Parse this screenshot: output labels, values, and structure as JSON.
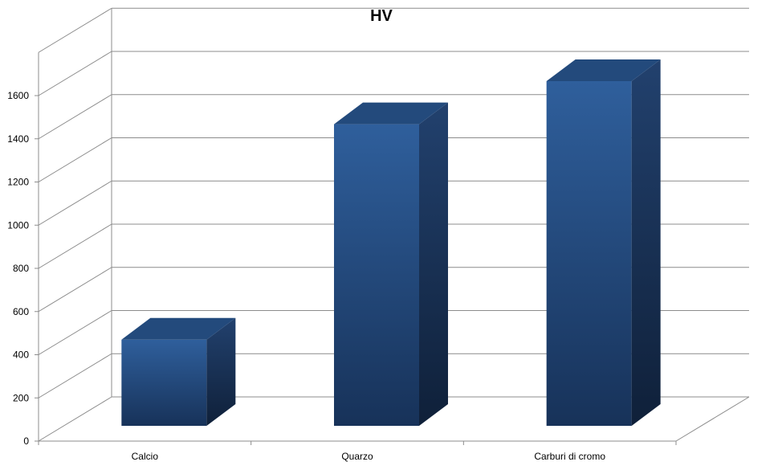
{
  "chart_data": {
    "type": "bar",
    "title": "HV",
    "categories": [
      "Calcio",
      "Quarzo",
      "Carburi di cromo"
    ],
    "values": [
      400,
      1400,
      1600
    ],
    "y_ticks": [
      0,
      200,
      400,
      600,
      800,
      1000,
      1200,
      1400,
      1600
    ],
    "ylim": [
      0,
      1800
    ],
    "grid": true,
    "three_d": true,
    "bar_color": "#2b5591",
    "grid_color": "#8c8c8c"
  }
}
